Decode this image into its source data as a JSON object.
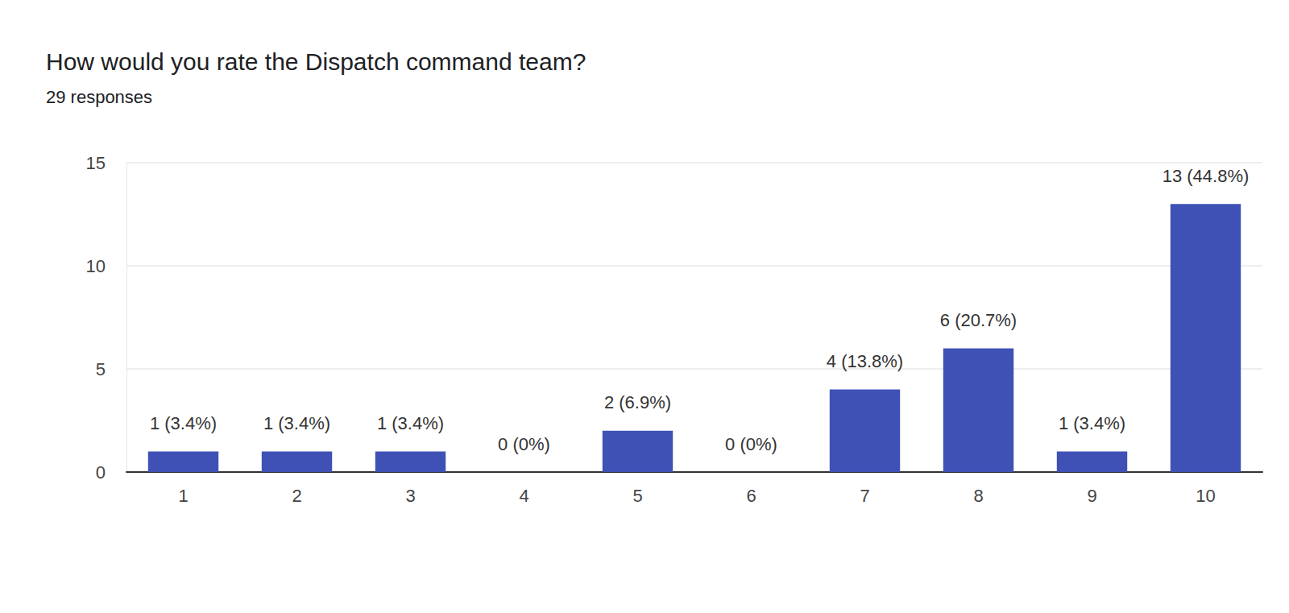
{
  "chart_data": {
    "type": "bar",
    "title": "How would you rate the Dispatch command team?",
    "subtitle": "29 responses",
    "categories": [
      "1",
      "2",
      "3",
      "4",
      "5",
      "6",
      "7",
      "8",
      "9",
      "10"
    ],
    "values": [
      1,
      1,
      1,
      0,
      2,
      0,
      4,
      6,
      1,
      13
    ],
    "value_labels": [
      "1 (3.4%)",
      "1 (3.4%)",
      "1 (3.4%)",
      "0 (0%)",
      "2 (6.9%)",
      "0 (0%)",
      "4 (13.8%)",
      "6 (20.7%)",
      "1 (3.4%)",
      "13 (44.8%)"
    ],
    "data_labels": true,
    "color": "#3f51b5",
    "ylim": [
      0,
      15
    ],
    "yticks": [
      0,
      5,
      10,
      15
    ],
    "grid": true
  }
}
